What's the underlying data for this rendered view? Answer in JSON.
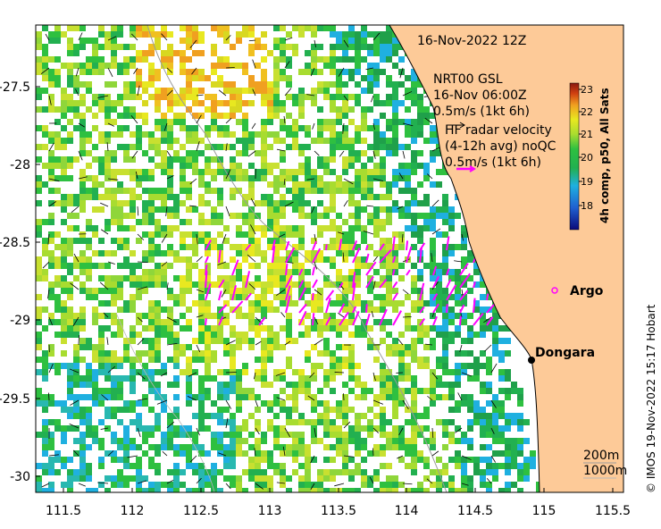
{
  "map": {
    "title": "16-Nov-2022 12Z",
    "model_label": "NRT00 GSL",
    "model_time": "16-Nov 06:00Z",
    "model_scale": "0.5m/s (1kt 6h)",
    "radar_label_1": "HF radar velocity",
    "radar_label_2": "(4-12h avg) noQC",
    "radar_scale": "0.5m/s (1kt 6h)",
    "credit": "© IMOS 19-Nov-2022 15:17 Hobart",
    "colorbar_label": "4h comp, p50, All Sats",
    "colorbar_ticks": [
      "18",
      "19",
      "20",
      "21",
      "22",
      "23"
    ],
    "x_ticks": [
      "111.5",
      "112",
      "112.5",
      "113",
      "113.5",
      "114",
      "114.5",
      "115",
      "115.5"
    ],
    "y_ticks": [
      "-27.5",
      "-28",
      "-28.5",
      "-29",
      "-29.5",
      "-30"
    ],
    "contour_1": "200m",
    "contour_2": "1000m",
    "places": [
      {
        "name": "Argo",
        "lon": 114.95,
        "lat": -28.9
      },
      {
        "name": "Dongara",
        "lon": 114.93,
        "lat": -29.25
      }
    ],
    "colors": {
      "land": "#FDCA98",
      "radar_arrow": "#FF00FF",
      "colorbar": [
        "#0b0b7a",
        "#1f9fe6",
        "#28b8b0",
        "#22b050",
        "#8fd63a",
        "#e8e820",
        "#f0a020",
        "#d04010",
        "#8a1a10"
      ]
    }
  }
}
